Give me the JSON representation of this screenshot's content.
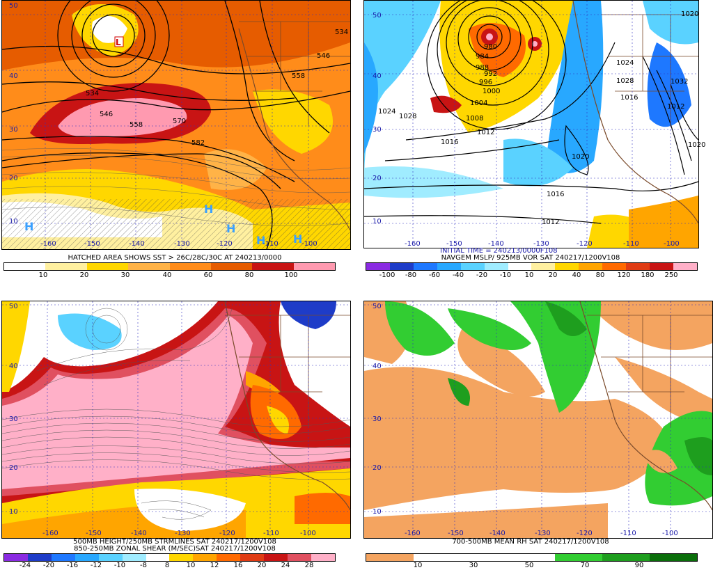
{
  "panels": [
    {
      "id": "ul",
      "caption": [
        "HATCHED AREA SHOWS SST > 26C/28C/30C AT 240213/0000"
      ],
      "colorbar": {
        "colors": [
          "#ffffff",
          "#fff0a0",
          "#ffd700",
          "#ffb347",
          "#ff8c1a",
          "#e65c00",
          "#c81414",
          "#ff9ab0"
        ],
        "ticks": [
          "10",
          "20",
          "30",
          "40",
          "60",
          "80",
          "100"
        ]
      },
      "lat_labels": [
        "50",
        "40",
        "30",
        "20",
        "10"
      ],
      "lon_labels": [
        "-160",
        "-150",
        "-140",
        "-130",
        "-120",
        "-110",
        "-100"
      ],
      "contour_labels": [
        "534",
        "546",
        "558",
        "570",
        "582",
        "534",
        "546",
        "558"
      ],
      "markers": [
        "H",
        "H",
        "H",
        "H",
        "H",
        "L"
      ]
    },
    {
      "id": "ur",
      "caption": [
        "INITIAL TIME = 240213/0000F108",
        "NAVGEM MSLP/ 925MB VOR SAT 240217/1200V108"
      ],
      "colorbar": {
        "colors": [
          "#8a2be2",
          "#1e3cc8",
          "#1e78ff",
          "#28a8ff",
          "#5ad2ff",
          "#a0ecff",
          "#ffffff",
          "#fff0a0",
          "#ffd700",
          "#ffa500",
          "#ff6a00",
          "#e03c14",
          "#c81414",
          "#ffb0c8"
        ],
        "ticks": [
          "-100",
          "-80",
          "-60",
          "-40",
          "-20",
          "-10",
          "10",
          "20",
          "40",
          "80",
          "120",
          "180",
          "250"
        ]
      },
      "lat_labels": [
        "50",
        "40",
        "30",
        "20",
        "10"
      ],
      "lon_labels": [
        "-160",
        "-150",
        "-140",
        "-130",
        "-120",
        "-110",
        "-100"
      ],
      "contour_labels": [
        "980",
        "984",
        "988",
        "992",
        "996",
        "1000",
        "1004",
        "1008",
        "1012",
        "1016",
        "1020",
        "1024",
        "1028",
        "1016",
        "1012",
        "1020",
        "1024",
        "1028",
        "1032",
        "1016",
        "1012",
        "1020"
      ]
    },
    {
      "id": "ll",
      "caption": [
        "500MB HEIGHT/250MB STRMLINES SAT 240217/1200V108",
        "850-250MB ZONAL SHEAR (M/SEC)SAT 240217/1200V108"
      ],
      "colorbar": {
        "colors": [
          "#8a2be2",
          "#1e3cc8",
          "#1e78ff",
          "#28a8ff",
          "#5ad2ff",
          "#a0ecff",
          "#ffffff",
          "#ffd700",
          "#ffa500",
          "#ff6a00",
          "#e03c14",
          "#c81414",
          "#e05060",
          "#ffb0c8"
        ],
        "ticks": [
          "-24",
          "-20",
          "-16",
          "-12",
          "-10",
          "-8",
          "8",
          "10",
          "12",
          "16",
          "20",
          "24",
          "28"
        ]
      },
      "lat_labels": [
        "50",
        "40",
        "30",
        "20",
        "10"
      ],
      "lon_labels": [
        "-160",
        "-150",
        "-140",
        "-130",
        "-120",
        "-110",
        "-100"
      ]
    },
    {
      "id": "lr",
      "caption": [
        "700-500MB MEAN RH SAT 240217/1200V108"
      ],
      "colorbar": {
        "colors": [
          "#f4a460",
          "#ffffff",
          "#ffffff",
          "#ffffff",
          "#32cd32",
          "#1e9e1e",
          "#0a6e0a"
        ],
        "ticks": [
          "10",
          "30",
          "50",
          "70",
          "90"
        ]
      },
      "lat_labels": [
        "50",
        "40",
        "30",
        "20",
        "10"
      ],
      "lon_labels": [
        "-160",
        "-150",
        "-140",
        "-130",
        "-120",
        "-110",
        "-100"
      ]
    }
  ]
}
